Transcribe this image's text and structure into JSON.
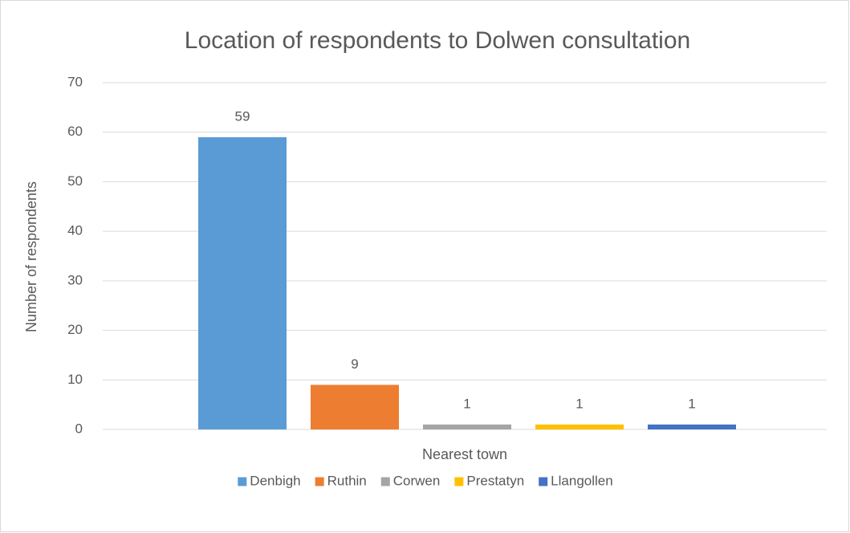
{
  "chart_data": {
    "type": "bar",
    "title": "Location of respondents to Dolwen consultation",
    "x_label": "Nearest town",
    "y_label": "Number of respondents",
    "categories": [
      null
    ],
    "series": [
      {
        "name": "Denbigh",
        "color": "#5b9bd5",
        "values": [
          59
        ]
      },
      {
        "name": "Ruthin",
        "color": "#ed7d31",
        "values": [
          9
        ]
      },
      {
        "name": "Corwen",
        "color": "#a5a5a5",
        "values": [
          1
        ]
      },
      {
        "name": "Prestatyn",
        "color": "#ffc000",
        "values": [
          1
        ]
      },
      {
        "name": "Llangollen",
        "color": "#4472c4",
        "values": [
          1
        ]
      }
    ],
    "ylim": [
      0,
      70
    ],
    "yticks": [
      0,
      10,
      20,
      30,
      40,
      50,
      60,
      70
    ],
    "grid": true,
    "legend": "bottom",
    "data_labels": true
  }
}
